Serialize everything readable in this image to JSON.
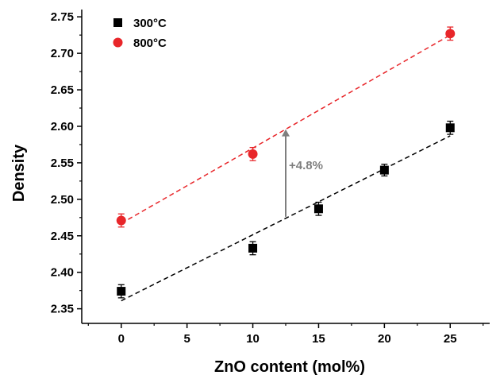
{
  "chart_data": {
    "type": "scatter",
    "title": "",
    "xlabel": "ZnO content (mol%)",
    "ylabel": "Density",
    "xlim": [
      -3,
      28
    ],
    "ylim": [
      2.33,
      2.76
    ],
    "x_ticks": [
      0,
      5,
      10,
      15,
      20,
      25
    ],
    "y_ticks": [
      2.35,
      2.4,
      2.45,
      2.5,
      2.55,
      2.6,
      2.65,
      2.7,
      2.75
    ],
    "y_tick_labels": [
      "2.35",
      "2.40",
      "2.45",
      "2.50",
      "2.55",
      "2.60",
      "2.65",
      "2.70",
      "2.75"
    ],
    "grid": false,
    "legend_position": "top-left",
    "series": [
      {
        "name": "300°C",
        "marker": "square",
        "color": "#000000",
        "x": [
          0,
          10,
          15,
          20,
          25
        ],
        "y": [
          2.374,
          2.433,
          2.487,
          2.54,
          2.598
        ],
        "error": [
          0.009,
          0.009,
          0.009,
          0.008,
          0.009
        ],
        "fit": {
          "x": [
            0,
            25
          ],
          "y": [
            2.361,
            2.587
          ],
          "style": "dashed",
          "color": "#000000"
        }
      },
      {
        "name": "800°C",
        "marker": "circle",
        "color": "#e8262a",
        "x": [
          0,
          10,
          25
        ],
        "y": [
          2.471,
          2.562,
          2.727
        ],
        "error": [
          0.009,
          0.009,
          0.009
        ],
        "fit": {
          "x": [
            0,
            25
          ],
          "y": [
            2.467,
            2.725
          ],
          "style": "dashed",
          "color": "#e8262a"
        }
      }
    ],
    "annotations": [
      {
        "text": "+4.8%",
        "arrow_x": 12.5,
        "arrow_y_from": 2.476,
        "arrow_y_to": 2.596,
        "color": "#7f7f7f"
      }
    ]
  }
}
